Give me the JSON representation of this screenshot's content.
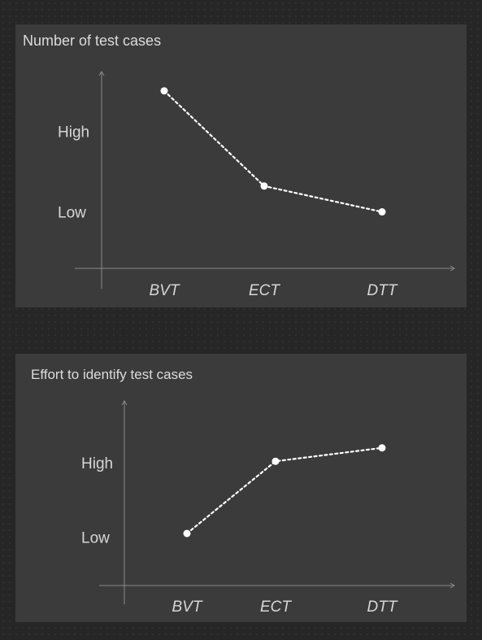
{
  "chart_data": [
    {
      "type": "line",
      "title": "Number of test cases",
      "categories": [
        "BVT",
        "ECT",
        "DTT"
      ],
      "y_tick_labels": [
        "Low",
        "High"
      ],
      "y_tick_values": [
        1,
        2
      ],
      "values": [
        2.5,
        1.32,
        1.0
      ],
      "ylim": [
        0.3,
        2.9
      ],
      "line_style": "dotted",
      "colors": {
        "line": "#ffffff",
        "axis": "#8a8a8a",
        "text": "#d7d7d7",
        "panel": "#3b3b3b"
      }
    },
    {
      "type": "line",
      "title": "Effort to identify test cases",
      "categories": [
        "BVT",
        "ECT",
        "DTT"
      ],
      "y_tick_labels": [
        "Low",
        "High"
      ],
      "y_tick_values": [
        1,
        2
      ],
      "values": [
        1.05,
        2.02,
        2.2
      ],
      "ylim": [
        0.35,
        2.7
      ],
      "line_style": "dotted",
      "colors": {
        "line": "#ffffff",
        "axis": "#8a8a8a",
        "text": "#d7d7d7",
        "panel": "#3b3b3b"
      }
    }
  ]
}
